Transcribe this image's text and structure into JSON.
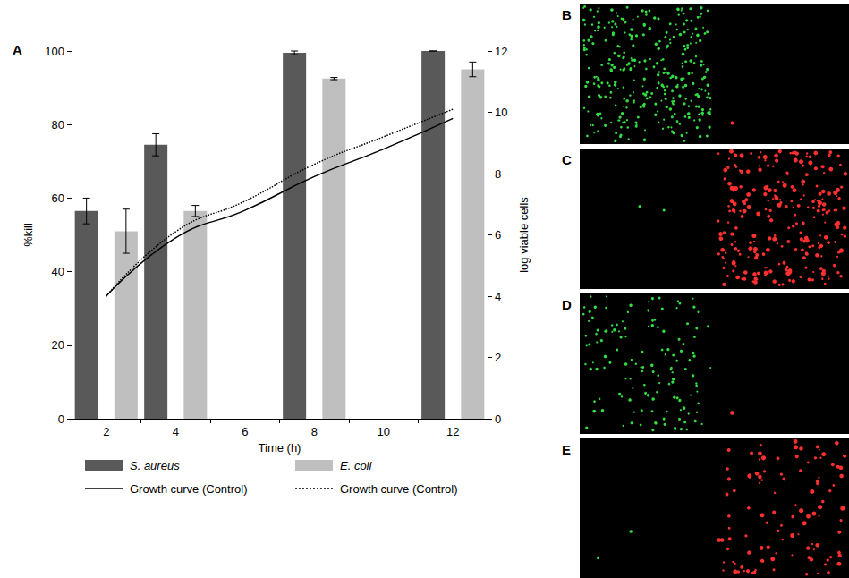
{
  "chart_data": {
    "type": "bar",
    "panel_label": "A",
    "x_label": "Time (h)",
    "y_label": "%kill",
    "y2_label": "log viable cells",
    "categories": [
      "2",
      "4",
      "6",
      "8",
      "10",
      "12"
    ],
    "ylim": [
      0,
      100
    ],
    "yticks": [
      0,
      20,
      40,
      60,
      80,
      100
    ],
    "y2lim": [
      0,
      12
    ],
    "y2ticks": [
      0,
      2,
      4,
      6,
      8,
      10,
      12
    ],
    "grid": false,
    "legend": "bottom",
    "series": [
      {
        "name": "S. aureus",
        "type": "bar",
        "color": "#595959",
        "values": [
          56.5,
          74.5,
          null,
          99.5,
          null,
          100
        ],
        "errors": [
          3.5,
          3,
          null,
          0.5,
          null,
          0
        ]
      },
      {
        "name": "E. coli",
        "type": "bar",
        "color": "#bfbfbf",
        "values": [
          51,
          56.5,
          null,
          92.5,
          null,
          95
        ],
        "errors": [
          6,
          1.5,
          null,
          0.3,
          null,
          2
        ]
      },
      {
        "name": "Growth curve (Control)",
        "type": "line",
        "axis": "y2",
        "color": "#000000",
        "line_style": "solid",
        "values": [
          4,
          5.9,
          6.8,
          7.9,
          8.8,
          9.8
        ]
      },
      {
        "name": "Growth curve (Control)",
        "type": "line",
        "axis": "y2",
        "color": "#000000",
        "line_style": "dotted",
        "values": [
          4,
          6.1,
          7.1,
          8.3,
          9.2,
          10.1
        ]
      }
    ]
  },
  "image_panels": [
    {
      "label": "B"
    },
    {
      "label": "C"
    },
    {
      "label": "D"
    },
    {
      "label": "E"
    }
  ]
}
